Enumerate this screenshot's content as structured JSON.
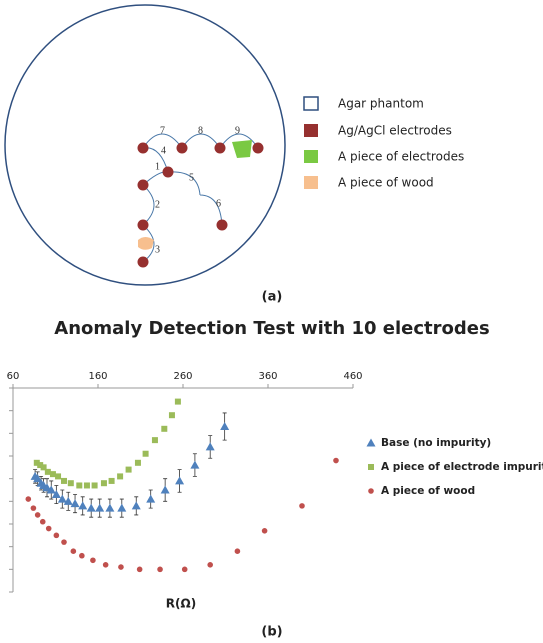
{
  "diagram": {
    "electrode_labels": [
      "1",
      "2",
      "3",
      "4",
      "5",
      "6",
      "7",
      "8",
      "9"
    ],
    "legend": [
      "Agar phantom",
      "Ag/AgCl  electrodes",
      "A piece of electrodes",
      "A piece of wood"
    ],
    "caption": "(a)"
  },
  "chart_data": {
    "type": "scatter",
    "title": "Anomaly Detection Test with 10 electrodes",
    "x_label": "R(Ω)",
    "caption": "(b)",
    "xlim": [
      60,
      460
    ],
    "xticks": [
      60,
      160,
      260,
      360,
      460
    ],
    "ylim": [
      -9,
      0
    ],
    "yticks": [
      -9,
      -8,
      -7,
      -6,
      -5,
      -4,
      -3,
      -2,
      -1,
      0
    ],
    "series": [
      {
        "name": "Base (no impurity)",
        "color": "#4f81bd",
        "marker": "triangle",
        "x": [
          86,
          89,
          93,
          96,
          100,
          105,
          111,
          118,
          125,
          133,
          142,
          152,
          162,
          174,
          188,
          205,
          222,
          239,
          256,
          274,
          292,
          309
        ],
        "values": [
          -3.9,
          -4.0,
          -4.2,
          -4.3,
          -4.4,
          -4.5,
          -4.7,
          -4.9,
          -5.0,
          -5.1,
          -5.2,
          -5.3,
          -5.3,
          -5.3,
          -5.3,
          -5.2,
          -4.9,
          -4.5,
          -4.1,
          -3.4,
          -2.6,
          -1.7
        ],
        "errors": [
          0.3,
          0.3,
          0.3,
          0.3,
          0.4,
          0.4,
          0.4,
          0.4,
          0.4,
          0.4,
          0.4,
          0.4,
          0.4,
          0.4,
          0.4,
          0.4,
          0.4,
          0.5,
          0.5,
          0.5,
          0.5,
          0.6
        ]
      },
      {
        "name": "A piece of electrode impurity",
        "color": "#9bbb59",
        "marker": "square",
        "x": [
          88,
          92,
          96,
          101,
          107,
          113,
          120,
          128,
          138,
          147,
          156,
          167,
          176,
          186,
          196,
          207,
          216,
          227,
          238,
          247,
          254
        ],
        "values": [
          -3.3,
          -3.4,
          -3.5,
          -3.7,
          -3.8,
          -3.9,
          -4.1,
          -4.2,
          -4.3,
          -4.3,
          -4.3,
          -4.2,
          -4.1,
          -3.9,
          -3.6,
          -3.3,
          -2.9,
          -2.3,
          -1.8,
          -1.2,
          -0.6
        ]
      },
      {
        "name": "A piece of wood",
        "color": "#c0504d",
        "marker": "circle",
        "x": [
          78,
          84,
          89,
          95,
          102,
          111,
          120,
          131,
          141,
          154,
          169,
          187,
          209,
          233,
          262,
          292,
          324,
          356,
          400,
          440
        ],
        "values": [
          -4.9,
          -5.3,
          -5.6,
          -5.9,
          -6.2,
          -6.5,
          -6.8,
          -7.2,
          -7.4,
          -7.6,
          -7.8,
          -7.9,
          -8.0,
          -8.0,
          -8.0,
          -7.8,
          -7.2,
          -6.3,
          -5.2,
          -3.2
        ]
      }
    ]
  }
}
